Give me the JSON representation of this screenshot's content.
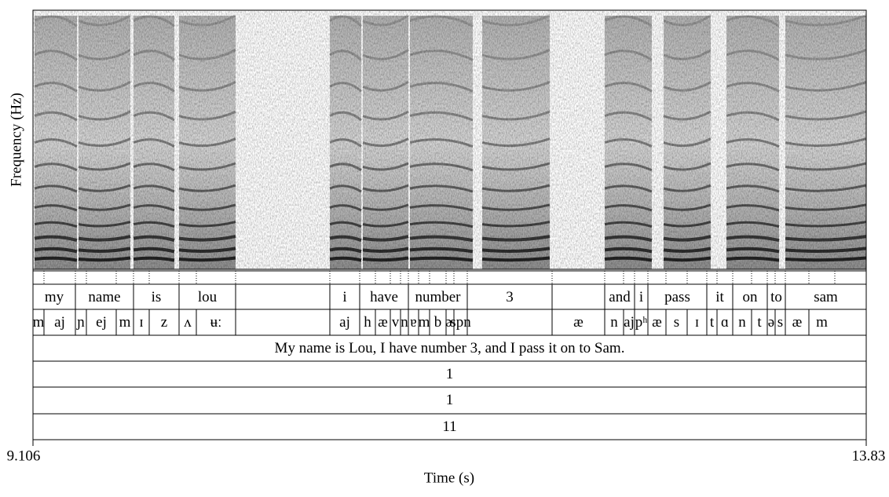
{
  "axes": {
    "y_label": "Frequency (Hz)",
    "x_label": "Time (s)",
    "x_start": 9.106,
    "x_end": 13.83
  },
  "tiers": [
    {
      "intervals": [
        "my",
        "name",
        "is",
        "lou",
        null,
        "i",
        "have",
        "number",
        "3",
        null,
        "and",
        "i",
        "pass",
        "it",
        "on",
        "to",
        "sam"
      ]
    },
    {
      "intervals": [
        "m",
        "aj",
        "ɲ",
        "ej",
        "m",
        "ɪ",
        "z",
        "ʌ",
        "ʉː",
        null,
        "aj",
        "h",
        "æ",
        "v",
        "n",
        "ɐ",
        "m",
        "b",
        "ɚ",
        "spn",
        null,
        "æ",
        "n",
        "aj",
        "pʰ",
        "æ",
        "s",
        "ɪ",
        "t",
        "ɑ",
        "n",
        "t",
        "ə",
        "s",
        "æ",
        "m"
      ]
    },
    {
      "intervals": [
        "My name is Lou, I have number 3, and I pass it on to Sam."
      ]
    },
    {
      "intervals": [
        "1"
      ]
    },
    {
      "intervals": [
        "1"
      ]
    },
    {
      "intervals": [
        "11"
      ]
    }
  ]
}
